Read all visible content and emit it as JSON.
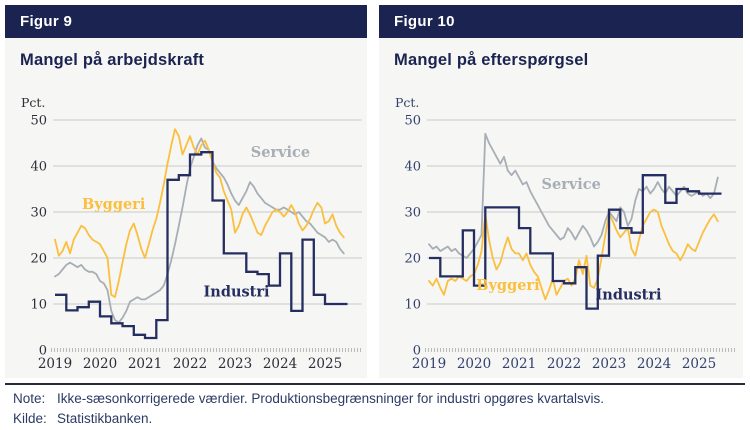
{
  "footer": {
    "note_label": "Note:",
    "note_text": "Ikke-sæsonkorrigerede værdier. Produktionsbegrænsninger for industri opgøres kvartalsvis.",
    "kilde_label": "Kilde:",
    "kilde_text": "Statistikbanken."
  },
  "colors": {
    "header_bg": "#1b2451",
    "title_text": "#1b2451",
    "byggeri": "#fbbf3e",
    "service": "#a7aeb5",
    "industri": "#252e61",
    "grid": "#cbcbca",
    "zero_axis": "#b3b3b0",
    "note_text": "#2c3a64"
  },
  "chart_data": [
    {
      "type": "line",
      "figur": "Figur 9",
      "title": "Mangel på arbejdskraft",
      "unit": "Pct.",
      "ylim": [
        0,
        50
      ],
      "yticks": [
        0,
        10,
        20,
        30,
        40,
        50
      ],
      "x_years": [
        "2019",
        "2020",
        "2021",
        "2022",
        "2023",
        "2024",
        "2025"
      ],
      "x_start": 2019.0,
      "x_end": 2025.5,
      "grid": true,
      "tick_color": "#2e2e38",
      "series": [
        {
          "name": "Service",
          "color": "#a7aeb5",
          "freq": "monthly",
          "start": "2019-01",
          "style": "line",
          "values": [
            16,
            16.5,
            17.5,
            18.5,
            19,
            18.5,
            18,
            18.5,
            17.5,
            17,
            17,
            16.5,
            15,
            14.5,
            13,
            8.5,
            6.5,
            6,
            7,
            8.5,
            10.5,
            11,
            11.5,
            11,
            11,
            11.5,
            12,
            12.5,
            13,
            14,
            16.5,
            19.5,
            23,
            27,
            31,
            35.5,
            39.5,
            42,
            44.5,
            46,
            44,
            43.5,
            41,
            39.5,
            38.5,
            37.5,
            36,
            34,
            32.5,
            31.5,
            33,
            34.5,
            36.5,
            35.5,
            34,
            33,
            32,
            31.5,
            31,
            30.5,
            30.5,
            31,
            30.5,
            30,
            29.5,
            30,
            29,
            28,
            27.5,
            26.5,
            25.5,
            25,
            24.5,
            23.5,
            24,
            23.5,
            22,
            21
          ]
        },
        {
          "name": "Byggeri",
          "color": "#fbbf3e",
          "freq": "monthly",
          "start": "2019-01",
          "style": "line",
          "values": [
            24,
            20.5,
            21.5,
            23.5,
            21,
            24,
            25.5,
            27,
            26.5,
            25,
            24,
            23.5,
            23,
            21.5,
            20,
            12,
            11.5,
            15,
            19,
            23,
            26,
            27.5,
            25,
            22,
            20,
            23,
            26,
            28.5,
            32,
            36,
            40.5,
            44.5,
            48,
            46.5,
            42.5,
            44.5,
            46.5,
            44,
            42.5,
            44.5,
            45.5,
            43.5,
            41,
            38.5,
            37.5,
            34.5,
            32.5,
            30.5,
            25.5,
            27,
            29.5,
            31,
            29.5,
            27.5,
            25.5,
            25,
            27,
            28.5,
            30,
            30.5,
            30,
            29,
            30,
            31.5,
            30,
            27.5,
            26,
            27,
            28.5,
            30.5,
            32,
            31,
            27.5,
            28,
            29.5,
            27,
            25.5,
            24.5
          ]
        },
        {
          "name": "Industri",
          "color": "#252e61",
          "freq": "quarterly",
          "start": "2019-Q1",
          "style": "step",
          "values": [
            12,
            8.6,
            9.3,
            10.5,
            7.3,
            5.8,
            5.2,
            3.3,
            2.6,
            6.5,
            37,
            38,
            42.5,
            43,
            32.5,
            21,
            21,
            17,
            16.5,
            14,
            21,
            8.5,
            24,
            12,
            10,
            10
          ]
        }
      ],
      "labels": [
        {
          "text": "Byggeri",
          "color": "#fbbf3e",
          "x_year": 2019.6,
          "y": 30.7
        },
        {
          "text": "Service",
          "color": "#a7aeb5",
          "x_year": 2023.35,
          "y": 42
        },
        {
          "text": "Industri",
          "color": "#252e61",
          "x_year": 2022.3,
          "y": 11.6
        }
      ]
    },
    {
      "type": "line",
      "figur": "Figur 10",
      "title": "Mangel på efterspørgsel",
      "unit": "Pct.",
      "ylim": [
        0,
        50
      ],
      "yticks": [
        0,
        10,
        20,
        30,
        40,
        50
      ],
      "x_years": [
        "2019",
        "2020",
        "2021",
        "2022",
        "2023",
        "2024",
        "2025"
      ],
      "x_start": 2019.0,
      "x_end": 2025.5,
      "grid": true,
      "tick_color": "#33416e",
      "series": [
        {
          "name": "Service",
          "color": "#a7aeb5",
          "freq": "monthly",
          "start": "2019-01",
          "style": "line",
          "values": [
            23,
            22,
            22.5,
            21.5,
            22,
            22.5,
            21.5,
            22,
            21,
            20.5,
            20,
            21,
            22,
            23.5,
            25,
            47,
            45,
            43.5,
            42,
            40.5,
            42,
            39,
            38,
            39,
            37.5,
            36,
            36.5,
            34.5,
            33,
            31.5,
            30,
            28.5,
            27,
            26,
            25,
            24,
            24.5,
            26.5,
            25.5,
            24,
            25.5,
            27,
            26,
            24.5,
            22.5,
            23.5,
            25,
            28,
            30,
            29,
            28,
            31,
            30,
            27,
            28.5,
            32.5,
            35,
            34.5,
            35.5,
            34,
            35,
            36.5,
            35,
            34,
            35.5,
            34.5,
            33.5,
            34.5,
            35.5,
            34,
            33.5,
            34,
            34.5,
            33.5,
            34,
            33,
            34,
            37.5
          ]
        },
        {
          "name": "Byggeri",
          "color": "#fbbf3e",
          "freq": "monthly",
          "start": "2019-01",
          "style": "line",
          "values": [
            15,
            14,
            15.5,
            13.5,
            12,
            15,
            15.5,
            15,
            16,
            15.5,
            15,
            16,
            16.5,
            18.5,
            21.5,
            29.5,
            24,
            20,
            17.5,
            19,
            22,
            24.5,
            22,
            21,
            21,
            19.5,
            21,
            18.5,
            17,
            16,
            13.5,
            11,
            13,
            15.5,
            12,
            13.5,
            15,
            15.5,
            14,
            15.5,
            19.5,
            16.5,
            20.5,
            14,
            13.5,
            15.5,
            20,
            25,
            29.5,
            28,
            26,
            24.5,
            25.5,
            26.5,
            22,
            20.5,
            24,
            27,
            28.5,
            30,
            30.5,
            30,
            27,
            25,
            23,
            21.5,
            21,
            19.5,
            21,
            23,
            22,
            21.5,
            23.5,
            25.5,
            27,
            28.5,
            29.5,
            28
          ]
        },
        {
          "name": "Industri",
          "color": "#252e61",
          "freq": "quarterly",
          "start": "2019-Q1",
          "style": "step",
          "values": [
            20,
            16,
            16,
            26,
            14,
            31,
            31,
            31,
            26.5,
            21,
            21,
            15,
            14.5,
            18,
            9,
            20.5,
            30.5,
            26.5,
            25.5,
            38,
            38,
            32,
            35,
            34.5,
            34,
            34
          ]
        }
      ],
      "labels": [
        {
          "text": "Byggeri",
          "color": "#fbbf3e",
          "x_year": 2020.05,
          "y": 13
        },
        {
          "text": "Service",
          "color": "#a7aeb5",
          "x_year": 2021.5,
          "y": 35
        },
        {
          "text": "Industri",
          "color": "#252e61",
          "x_year": 2022.7,
          "y": 11
        }
      ]
    }
  ]
}
